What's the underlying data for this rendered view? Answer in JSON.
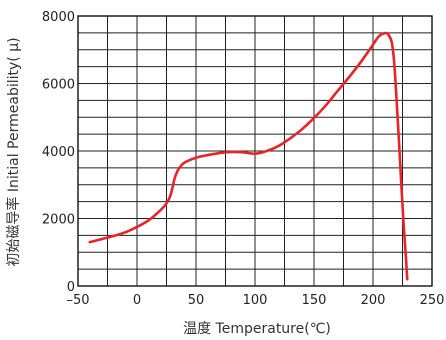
{
  "chart_data": {
    "type": "line",
    "title": "",
    "xlabel": "温度 Temperature(℃)",
    "ylabel": "初始磁导率  Initial Permeability( μ)",
    "xlim": [
      -50,
      250
    ],
    "ylim": [
      0,
      8000
    ],
    "x_ticks": [
      -50,
      0,
      50,
      100,
      150,
      200,
      250
    ],
    "x_tick_labels": [
      "–50",
      "0",
      "50",
      "100",
      "150",
      "200",
      "250"
    ],
    "y_ticks": [
      0,
      2000,
      4000,
      6000,
      8000
    ],
    "y_tick_labels": [
      "0",
      "2000",
      "4000",
      "6000",
      "8000"
    ],
    "grid": true,
    "series": [
      {
        "color": "#e8242a",
        "x": [
          -40,
          -30,
          -20,
          -10,
          0,
          10,
          20,
          25,
          28,
          30,
          32,
          35,
          40,
          50,
          60,
          70,
          80,
          90,
          100,
          110,
          120,
          130,
          140,
          150,
          160,
          170,
          180,
          190,
          200,
          205,
          210,
          213,
          216,
          218,
          220,
          222,
          224,
          226,
          228,
          229
        ],
        "y": [
          1300,
          1390,
          1480,
          1590,
          1750,
          1950,
          2250,
          2450,
          2650,
          2900,
          3200,
          3450,
          3650,
          3800,
          3880,
          3940,
          3970,
          3960,
          3920,
          4000,
          4150,
          4380,
          4650,
          4980,
          5350,
          5780,
          6200,
          6650,
          7150,
          7400,
          7490,
          7450,
          7200,
          6600,
          5500,
          4300,
          3000,
          1800,
          800,
          200
        ]
      }
    ]
  }
}
